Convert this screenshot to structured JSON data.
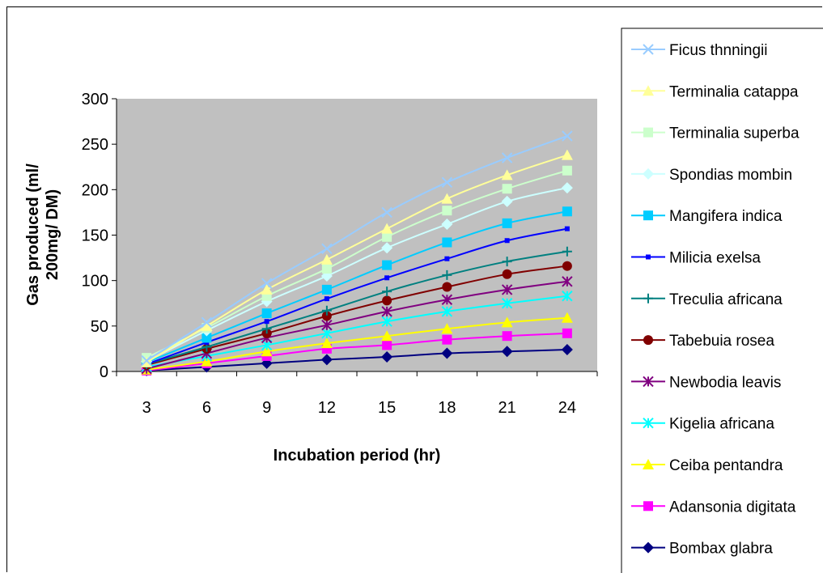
{
  "chart_data": {
    "type": "line",
    "title": "",
    "xlabel": "Incubation period (hr)",
    "ylabel_lines": [
      "Gas produced (ml/",
      "200mg/ DM)"
    ],
    "categories": [
      "3",
      "6",
      "9",
      "12",
      "15",
      "18",
      "21",
      "24"
    ],
    "ylim": [
      0,
      300
    ],
    "yticks": [
      "0",
      "50",
      "100",
      "150",
      "200",
      "250",
      "300"
    ],
    "grid": false,
    "plot_background": "#c0c0c0",
    "legend_position": "right",
    "series": [
      {
        "name": "Ficus thnningii",
        "color": "#99ccff",
        "marker": "x",
        "values": [
          12,
          54,
          97,
          135,
          175,
          208,
          235,
          259
        ]
      },
      {
        "name": "Terminalia catappa",
        "color": "#ffff99",
        "marker": "triangle",
        "values": [
          10,
          50,
          90,
          123,
          157,
          190,
          216,
          238
        ]
      },
      {
        "name": "Terminalia superba",
        "color": "#ccffcc",
        "marker": "square",
        "values": [
          15,
          48,
          83,
          113,
          148,
          177,
          201,
          221
        ]
      },
      {
        "name": "Spondias mombin",
        "color": "#ccffff",
        "marker": "diamond",
        "values": [
          11,
          45,
          77,
          105,
          136,
          162,
          187,
          202
        ]
      },
      {
        "name": "Mangifera indica",
        "color": "#00ccff",
        "marker": "square",
        "values": [
          10,
          37,
          64,
          90,
          117,
          142,
          163,
          176
        ]
      },
      {
        "name": "Milicia exelsa",
        "color": "#0000ff",
        "marker": "smallsquare",
        "values": [
          8,
          32,
          55,
          80,
          103,
          124,
          144,
          157
        ]
      },
      {
        "name": "Treculia africana",
        "color": "#008080",
        "marker": "plus",
        "values": [
          8,
          27,
          47,
          67,
          88,
          106,
          121,
          132
        ]
      },
      {
        "name": "Tabebuia rosea",
        "color": "#800000",
        "marker": "circle",
        "values": [
          7,
          25,
          42,
          61,
          78,
          93,
          107,
          116
        ]
      },
      {
        "name": "Newbodia leavis",
        "color": "#800080",
        "marker": "asterisk",
        "values": [
          3,
          20,
          37,
          51,
          66,
          79,
          90,
          99
        ]
      },
      {
        "name": "Kigelia africana",
        "color": "#00ffff",
        "marker": "asterisk",
        "values": [
          5,
          17,
          29,
          42,
          55,
          66,
          75,
          83
        ]
      },
      {
        "name": "Ceiba pentandra",
        "color": "#ffff00",
        "marker": "triangle",
        "values": [
          2,
          11,
          22,
          31,
          39,
          47,
          54,
          59
        ]
      },
      {
        "name": "Adansonia digitata",
        "color": "#ff00ff",
        "marker": "square",
        "values": [
          1,
          9,
          17,
          25,
          29,
          35,
          39,
          42
        ]
      },
      {
        "name": "Bombax glabra",
        "color": "#000080",
        "marker": "diamond",
        "values": [
          1,
          5,
          9,
          13,
          16,
          20,
          22,
          24
        ]
      }
    ]
  }
}
